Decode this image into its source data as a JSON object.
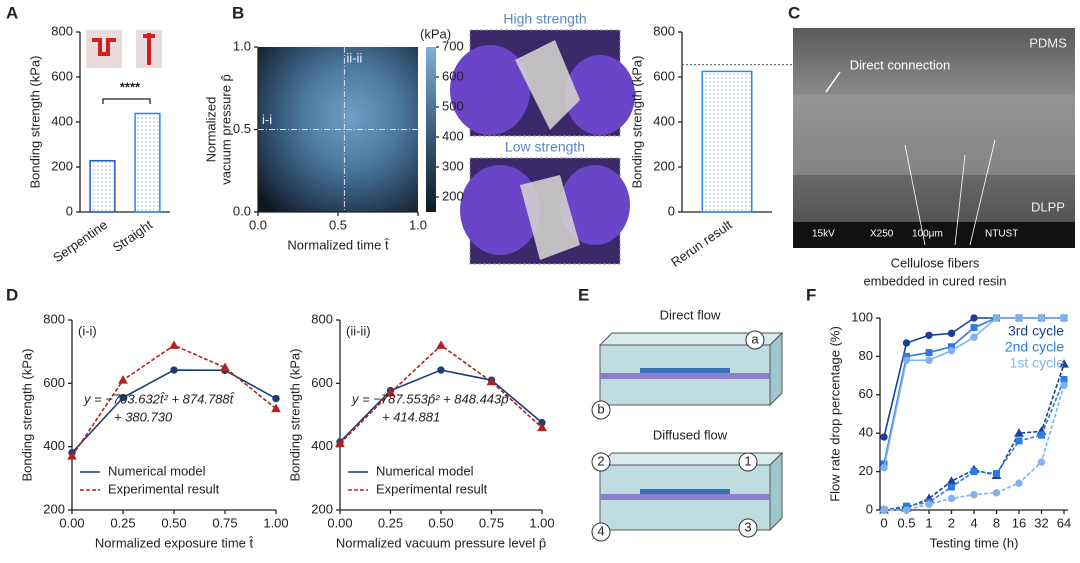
{
  "panel_labels": [
    "A",
    "B",
    "C",
    "D",
    "E",
    "F"
  ],
  "photos": {
    "high": "High strength",
    "low": "Low strength"
  },
  "chart_data": [
    {
      "type": "bar",
      "ylabel": "Bonding strength (kPa)",
      "categories": [
        "Serpentine",
        "Straight"
      ],
      "values": [
        228,
        438
      ],
      "colors": [
        "#1f5fc4",
        "#2b8ae8"
      ],
      "ylim": [
        0,
        800
      ],
      "yticks": [
        0,
        200,
        400,
        600,
        800
      ],
      "annotation": "****"
    },
    {
      "type": "heatmap",
      "xlabel": "Normalized time t̂",
      "ylabel": [
        "Normalized",
        "vacuum pressure p̂"
      ],
      "xlim": [
        0,
        1
      ],
      "ylim": [
        0,
        1
      ],
      "xticks": [
        {
          "value": 0,
          "label": "0.0"
        },
        {
          "value": 0.5,
          "label": "0.5"
        },
        {
          "value": 1,
          "label": "1.0"
        }
      ],
      "yticks": [
        {
          "value": 0,
          "label": "0.0"
        },
        {
          "value": 0.5,
          "label": "0.5"
        },
        {
          "value": 1,
          "label": "1.0"
        }
      ],
      "colorbar_label": "(kPa)",
      "clim": [
        150,
        700
      ],
      "cticks": [
        200,
        300,
        400,
        500,
        600,
        700
      ],
      "sections": [
        {
          "label": "i-i",
          "axis": "y",
          "value": 0.5
        },
        {
          "label": "ii-ii",
          "axis": "x",
          "value": 0.54
        }
      ]
    },
    {
      "type": "bar",
      "ylabel": "Bonding strength (kPa)",
      "categories": [
        "Rerun result"
      ],
      "values": [
        625
      ],
      "colors": [
        "#2b8ae8"
      ],
      "ylim": [
        0,
        800
      ],
      "yticks": [
        0,
        200,
        400,
        600,
        800
      ],
      "reference": 655
    },
    {
      "type": "line",
      "panel_label": "(i-i)",
      "xlabel": "Normalized exposure time t̂",
      "ylabel": "Bonding strength (kPa)",
      "x": [
        0,
        0.25,
        0.5,
        0.75,
        1
      ],
      "xlim": [
        0,
        1
      ],
      "xticks": [
        {
          "value": 0,
          "label": "0.00"
        },
        {
          "value": 0.25,
          "label": "0.25"
        },
        {
          "value": 0.5,
          "label": "0.50"
        },
        {
          "value": 0.75,
          "label": "0.75"
        },
        {
          "value": 1,
          "label": "1.00"
        }
      ],
      "ylim": [
        200,
        800
      ],
      "yticks": [
        200,
        400,
        600,
        800
      ],
      "series": [
        {
          "name": "Numerical model",
          "color": "#1a3f7a",
          "marker": "circle",
          "values": [
            381,
            555,
            642,
            641,
            552
          ]
        },
        {
          "name": "Experimental result",
          "color": "#b22222",
          "marker": "triangle",
          "dashed": true,
          "values": [
            370,
            610,
            720,
            650,
            520
          ]
        }
      ],
      "equation": [
        "y = −703.632t̂² + 874.788t̂",
        "+ 380.730"
      ]
    },
    {
      "type": "line",
      "panel_label": "(ii-ii)",
      "xlabel": "Normalized vacuum pressure level p̂",
      "ylabel": "Bonding strength (kPa)",
      "x": [
        0,
        0.25,
        0.5,
        0.75,
        1
      ],
      "xlim": [
        0,
        1
      ],
      "xticks": [
        {
          "value": 0,
          "label": "0.00"
        },
        {
          "value": 0.25,
          "label": "0.25"
        },
        {
          "value": 0.5,
          "label": "0.50"
        },
        {
          "value": 0.75,
          "label": "0.75"
        },
        {
          "value": 1,
          "label": "1.00"
        }
      ],
      "ylim": [
        200,
        800
      ],
      "yticks": [
        200,
        400,
        600,
        800
      ],
      "series": [
        {
          "name": "Numerical model",
          "color": "#1a3f7a",
          "marker": "circle",
          "values": [
            415,
            577,
            642,
            610,
            476
          ]
        },
        {
          "name": "Experimental result",
          "color": "#b22222",
          "marker": "triangle",
          "dashed": true,
          "values": [
            410,
            570,
            720,
            605,
            460
          ]
        }
      ],
      "equation": [
        "y = −787.553p̂² + 848.443p̂",
        "+ 414.881"
      ]
    },
    {
      "type": "line",
      "xlabel": "Testing time (h)",
      "ylabel": "Flow rate drop percentage (%)",
      "categories": [
        "0",
        "0.5",
        "1",
        "2",
        "4",
        "8",
        "16",
        "32",
        "64"
      ],
      "ylim": [
        0,
        100
      ],
      "yticks": [
        0,
        20,
        40,
        60,
        80,
        100
      ],
      "series": [
        {
          "name": "3rd cycle",
          "color": "#1a3f9a",
          "marker": "circle",
          "values": [
            38,
            87,
            91,
            92,
            100,
            100,
            100,
            100,
            100
          ]
        },
        {
          "name": "2nd cycle",
          "color": "#2b7be0",
          "marker": "square",
          "values": [
            24,
            80,
            82,
            85,
            95,
            100,
            100,
            100,
            100
          ]
        },
        {
          "name": "1st cycle",
          "color": "#7fb2ee",
          "marker": "circle",
          "values": [
            22,
            78,
            78,
            83,
            90,
            100,
            100,
            100,
            100
          ]
        },
        {
          "color": "#1a3f9a",
          "marker": "triangle",
          "dashed": true,
          "values": [
            0,
            1,
            6,
            15,
            21,
            18,
            40,
            41,
            76
          ]
        },
        {
          "color": "#2b7be0",
          "marker": "square",
          "dashed": true,
          "values": [
            0,
            2,
            4,
            12,
            20,
            19,
            36,
            39,
            68
          ]
        },
        {
          "color": "#7fb2ee",
          "marker": "circle",
          "dashed": true,
          "values": [
            0,
            0,
            3,
            6,
            8,
            9,
            14,
            25,
            65
          ]
        }
      ]
    }
  ],
  "sem_image": {
    "top": "PDMS",
    "bottom": "DLPP",
    "arrow": "Direct connection",
    "info": [
      "15kV",
      "X250",
      "100μm",
      "NTUST"
    ],
    "caption": [
      "Cellulose fibers",
      "embedded in cured resin"
    ]
  },
  "diagram": {
    "direct": "Direct  flow",
    "diffused": "Diffused flow",
    "ports": [
      "a",
      "b",
      "1",
      "2",
      "3",
      "4"
    ]
  }
}
